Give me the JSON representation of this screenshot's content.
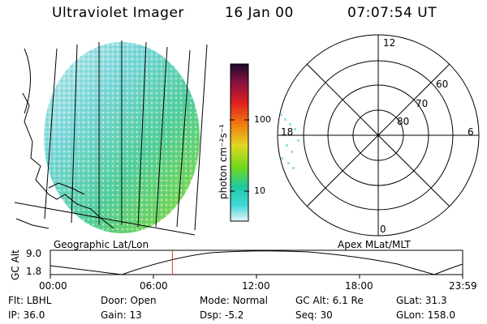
{
  "header": {
    "instrument": "Ultraviolet Imager",
    "date": "16 Jan 00",
    "time": "07:07:54 UT"
  },
  "colorbar": {
    "unit_label": "photon cm⁻²s⁻¹",
    "ticks": [
      "100",
      "10"
    ]
  },
  "polar": {
    "mlt_labels": [
      "12",
      "18",
      "6",
      "0"
    ],
    "lat_labels": [
      "60",
      "70",
      "80"
    ]
  },
  "panels": {
    "left_caption": "Geographic Lat/Lon",
    "right_caption": "Apex MLat/MLT"
  },
  "timeline": {
    "ylabel": "GC Alt",
    "ytick_top": "9.0",
    "ytick_bottom": "1.8",
    "xticks": [
      "00:00",
      "06:00",
      "12:00",
      "18:00",
      "23:59"
    ],
    "current_time_fraction": 0.296
  },
  "info": {
    "row1": [
      {
        "key": "Flt:",
        "value": "LBHL"
      },
      {
        "key": "Door:",
        "value": "Open"
      },
      {
        "key": "Mode:",
        "value": "Normal"
      },
      {
        "key": "GC Alt:",
        "value": "6.1 Re"
      },
      {
        "key": "GLat:",
        "value": "31.3"
      }
    ],
    "row2": [
      {
        "key": "IP:",
        "value": "36.0"
      },
      {
        "key": "Gain:",
        "value": "13"
      },
      {
        "key": "Dsp:",
        "value": "-5.2"
      },
      {
        "key": "Seq:",
        "value": "30"
      },
      {
        "key": "GLon:",
        "value": "158.0"
      }
    ]
  },
  "colors": {
    "accent_marker": "#e03c1c"
  }
}
